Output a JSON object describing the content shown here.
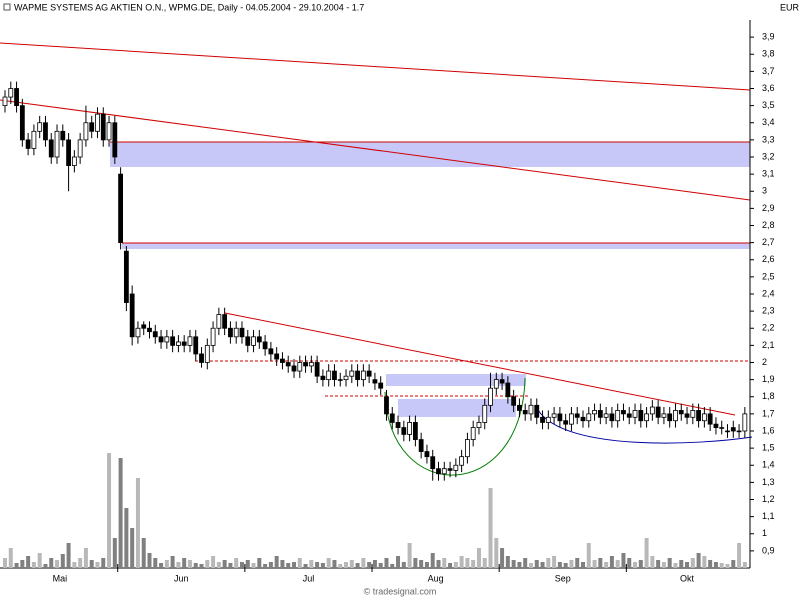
{
  "chart_data": {
    "type": "candlestick",
    "title": "WAPME SYSTEMS AG AKTIEN O.N., WPMG.DE, Daily - 04.05.2004 - 29.10.2004 - 1.7",
    "currency": "EUR",
    "watermark": "© tradesignal.com",
    "categories": [
      "Mai",
      null,
      null,
      null,
      null,
      null,
      null,
      null,
      null,
      null,
      null,
      null,
      null,
      null,
      null,
      null,
      null,
      null,
      null,
      null,
      "Jun",
      null,
      null,
      null,
      null,
      null,
      null,
      null,
      null,
      null,
      null,
      null,
      null,
      null,
      null,
      null,
      null,
      null,
      null,
      null,
      null,
      null,
      "Jul",
      null,
      null,
      null,
      null,
      null,
      null,
      null,
      null,
      null,
      null,
      null,
      null,
      null,
      null,
      null,
      null,
      null,
      null,
      null,
      null,
      null,
      "Aug",
      null,
      null,
      null,
      null,
      null,
      null,
      null,
      null,
      null,
      null,
      null,
      null,
      null,
      null,
      null,
      null,
      null,
      null,
      null,
      null,
      null,
      "Sep",
      null,
      null,
      null,
      null,
      null,
      null,
      null,
      null,
      null,
      null,
      null,
      null,
      null,
      null,
      null,
      null,
      null,
      null,
      null,
      null,
      null,
      "Okt",
      null,
      null,
      null,
      null,
      null,
      null,
      null,
      null,
      null,
      null,
      null,
      null,
      null,
      null,
      null,
      null,
      null,
      null,
      null,
      null
    ],
    "open": [
      3.5,
      3.55,
      3.6,
      3.5,
      3.3,
      3.25,
      3.35,
      3.4,
      3.3,
      3.2,
      3.35,
      3.3,
      3.15,
      3.2,
      3.3,
      3.4,
      3.35,
      3.45,
      3.3,
      3.4,
      3.1,
      2.65,
      2.4,
      2.15,
      2.22,
      2.2,
      2.18,
      2.15,
      2.12,
      2.15,
      2.1,
      2.12,
      2.1,
      2.15,
      2.05,
      2.0,
      2.1,
      2.2,
      2.28,
      2.2,
      2.15,
      2.2,
      2.15,
      2.1,
      2.15,
      2.12,
      2.08,
      2.05,
      2.02,
      2.0,
      1.98,
      1.95,
      2.0,
      1.98,
      2.0,
      1.92,
      1.9,
      1.95,
      1.9,
      1.9,
      1.92,
      1.95,
      1.9,
      1.95,
      1.9,
      1.88,
      1.8,
      1.7,
      1.65,
      1.62,
      1.58,
      1.65,
      1.55,
      1.48,
      1.45,
      1.38,
      1.35,
      1.38,
      1.37,
      1.4,
      1.45,
      1.55,
      1.62,
      1.65,
      1.75,
      1.85,
      1.9,
      1.88,
      1.8,
      1.75,
      1.72,
      1.7,
      1.75,
      1.68,
      1.65,
      1.68,
      1.7,
      1.66,
      1.64,
      1.7,
      1.68,
      1.66,
      1.7,
      1.72,
      1.68,
      1.7,
      1.66,
      1.72,
      1.7,
      1.68,
      1.72,
      1.66,
      1.7,
      1.74,
      1.68,
      1.7,
      1.66,
      1.72,
      1.7,
      1.68,
      1.72,
      1.66,
      1.7,
      1.64,
      1.62,
      1.6,
      1.62,
      1.6,
      1.6
    ],
    "high": [
      3.59,
      3.64,
      3.64,
      3.54,
      3.34,
      3.39,
      3.44,
      3.44,
      3.34,
      3.39,
      3.39,
      3.34,
      3.24,
      3.34,
      3.5,
      3.44,
      3.49,
      3.49,
      3.44,
      3.44,
      3.14,
      2.68,
      2.45,
      2.24,
      2.24,
      2.24,
      2.22,
      2.19,
      2.19,
      2.19,
      2.16,
      2.16,
      2.19,
      2.19,
      2.09,
      2.14,
      2.24,
      2.32,
      2.32,
      2.24,
      2.24,
      2.24,
      2.19,
      2.19,
      2.19,
      2.16,
      2.12,
      2.09,
      2.06,
      2.04,
      2.02,
      2.04,
      2.04,
      2.04,
      2.04,
      1.96,
      1.99,
      1.99,
      1.94,
      1.96,
      1.99,
      1.99,
      1.99,
      1.99,
      1.94,
      1.92,
      1.84,
      1.74,
      1.69,
      1.66,
      1.69,
      1.69,
      1.59,
      1.52,
      1.49,
      1.42,
      1.42,
      1.42,
      1.44,
      1.49,
      1.59,
      1.66,
      1.69,
      1.79,
      1.94,
      1.94,
      1.94,
      1.92,
      1.84,
      1.79,
      1.76,
      1.79,
      1.79,
      1.72,
      1.72,
      1.74,
      1.74,
      1.7,
      1.74,
      1.74,
      1.72,
      1.74,
      1.76,
      1.76,
      1.74,
      1.74,
      1.76,
      1.76,
      1.74,
      1.76,
      1.76,
      1.74,
      1.78,
      1.78,
      1.74,
      1.74,
      1.76,
      1.76,
      1.74,
      1.76,
      1.76,
      1.74,
      1.74,
      1.68,
      1.66,
      1.64,
      1.66,
      1.64,
      1.74
    ],
    "low": [
      3.46,
      3.51,
      3.46,
      3.26,
      3.21,
      3.21,
      3.31,
      3.26,
      3.16,
      3.16,
      3.26,
      3.0,
      3.11,
      3.16,
      3.26,
      3.31,
      3.31,
      3.26,
      3.26,
      3.16,
      2.66,
      2.3,
      2.1,
      2.11,
      2.16,
      2.14,
      2.11,
      2.08,
      2.08,
      2.06,
      2.06,
      2.06,
      2.06,
      2.01,
      1.97,
      1.96,
      2.06,
      2.16,
      2.16,
      2.11,
      2.11,
      2.11,
      2.06,
      2.06,
      2.08,
      2.04,
      2.01,
      1.98,
      1.96,
      1.94,
      1.91,
      1.91,
      1.94,
      1.94,
      1.88,
      1.86,
      1.86,
      1.86,
      1.86,
      1.86,
      1.88,
      1.86,
      1.86,
      1.88,
      1.84,
      1.81,
      1.66,
      1.61,
      1.58,
      1.54,
      1.54,
      1.51,
      1.44,
      1.41,
      1.31,
      1.31,
      1.31,
      1.33,
      1.33,
      1.36,
      1.41,
      1.51,
      1.58,
      1.61,
      1.71,
      1.81,
      1.84,
      1.76,
      1.71,
      1.68,
      1.66,
      1.66,
      1.64,
      1.61,
      1.61,
      1.64,
      1.62,
      1.6,
      1.6,
      1.64,
      1.62,
      1.62,
      1.66,
      1.64,
      1.64,
      1.62,
      1.62,
      1.66,
      1.64,
      1.64,
      1.62,
      1.62,
      1.66,
      1.64,
      1.64,
      1.62,
      1.62,
      1.66,
      1.64,
      1.64,
      1.62,
      1.62,
      1.6,
      1.58,
      1.58,
      1.56,
      1.56,
      1.56,
      1.56
    ],
    "close": [
      3.55,
      3.6,
      3.5,
      3.3,
      3.25,
      3.35,
      3.4,
      3.3,
      3.2,
      3.35,
      3.3,
      3.15,
      3.2,
      3.3,
      3.4,
      3.35,
      3.45,
      3.3,
      3.4,
      3.2,
      2.7,
      2.35,
      2.15,
      2.2,
      2.2,
      2.18,
      2.15,
      2.12,
      2.15,
      2.1,
      2.12,
      2.1,
      2.15,
      2.05,
      2.0,
      2.1,
      2.2,
      2.28,
      2.2,
      2.15,
      2.2,
      2.15,
      2.1,
      2.15,
      2.12,
      2.08,
      2.05,
      2.02,
      2.0,
      1.98,
      1.95,
      2.0,
      1.98,
      2.0,
      1.92,
      1.9,
      1.95,
      1.9,
      1.9,
      1.92,
      1.95,
      1.9,
      1.95,
      1.92,
      1.88,
      1.85,
      1.7,
      1.65,
      1.62,
      1.58,
      1.65,
      1.55,
      1.48,
      1.45,
      1.38,
      1.35,
      1.38,
      1.37,
      1.4,
      1.45,
      1.55,
      1.62,
      1.65,
      1.75,
      1.85,
      1.9,
      1.88,
      1.8,
      1.75,
      1.72,
      1.7,
      1.75,
      1.68,
      1.65,
      1.68,
      1.7,
      1.66,
      1.64,
      1.7,
      1.68,
      1.66,
      1.7,
      1.72,
      1.68,
      1.7,
      1.66,
      1.72,
      1.7,
      1.68,
      1.72,
      1.66,
      1.7,
      1.74,
      1.68,
      1.7,
      1.66,
      1.72,
      1.7,
      1.68,
      1.72,
      1.66,
      1.7,
      1.64,
      1.62,
      1.62,
      1.6,
      1.6,
      1.6,
      1.7
    ],
    "volume": [
      10,
      20,
      5,
      8,
      12,
      6,
      15,
      4,
      10,
      8,
      14,
      25,
      6,
      10,
      20,
      8,
      6,
      10,
      115,
      30,
      110,
      60,
      40,
      90,
      30,
      15,
      10,
      5,
      8,
      12,
      6,
      10,
      8,
      5,
      4,
      8,
      12,
      6,
      8,
      5,
      10,
      6,
      8,
      5,
      10,
      4,
      6,
      12,
      8,
      5,
      6,
      10,
      4,
      8,
      6,
      5,
      10,
      8,
      4,
      6,
      8,
      5,
      10,
      6,
      8,
      5,
      10,
      4,
      12,
      6,
      25,
      10,
      8,
      6,
      15,
      8,
      10,
      5,
      6,
      12,
      10,
      8,
      20,
      10,
      80,
      30,
      20,
      12,
      8,
      6,
      10,
      5,
      8,
      6,
      10,
      12,
      6,
      5,
      8,
      10,
      6,
      25,
      8,
      10,
      6,
      12,
      8,
      15,
      10,
      6,
      8,
      30,
      12,
      8,
      6,
      10,
      5,
      8,
      6,
      10,
      15,
      12,
      8,
      6,
      5,
      4,
      8,
      25,
      6
    ],
    "colors": {
      "up": "#ffffff",
      "down": "#000000",
      "wick": "#000000",
      "volume_up": "#b8b8b8",
      "volume_down": "#808080"
    },
    "ylim": [
      0.8,
      4.0
    ],
    "yticks": [
      {
        "value": 0.9,
        "label": "0,9"
      },
      1,
      {
        "value": 1.1,
        "label": "1,1"
      },
      {
        "value": 1.2,
        "label": "1,2"
      },
      {
        "value": 1.3,
        "label": "1,3"
      },
      {
        "value": 1.4,
        "label": "1,4"
      },
      {
        "value": 1.5,
        "label": "1,5"
      },
      {
        "value": 1.6,
        "label": "1,6"
      },
      {
        "value": 1.7,
        "label": "1,7"
      },
      {
        "value": 1.8,
        "label": "1,8"
      },
      {
        "value": 1.9,
        "label": "1,9"
      },
      2,
      {
        "value": 2.1,
        "label": "2,1"
      },
      {
        "value": 2.2,
        "label": "2,2"
      },
      {
        "value": 2.3,
        "label": "2,3"
      },
      {
        "value": 2.4,
        "label": "2,4"
      },
      {
        "value": 2.5,
        "label": "2,5"
      },
      {
        "value": 2.6,
        "label": "2,6"
      },
      {
        "value": 2.7,
        "label": "2,7"
      },
      {
        "value": 2.8,
        "label": "2,8"
      },
      {
        "value": 2.9,
        "label": "2,9"
      },
      3,
      {
        "value": 3.1,
        "label": "3,1"
      },
      {
        "value": 3.2,
        "label": "3,2"
      },
      {
        "value": 3.3,
        "label": "3,3"
      },
      {
        "value": 3.4,
        "label": "3,4"
      },
      {
        "value": 3.5,
        "label": "3,5"
      },
      {
        "value": 3.6,
        "label": "3,6"
      },
      {
        "value": 3.7,
        "label": "3,7"
      },
      {
        "value": 3.8,
        "label": "3,8"
      },
      {
        "value": 3.9,
        "label": "3,9"
      }
    ]
  }
}
